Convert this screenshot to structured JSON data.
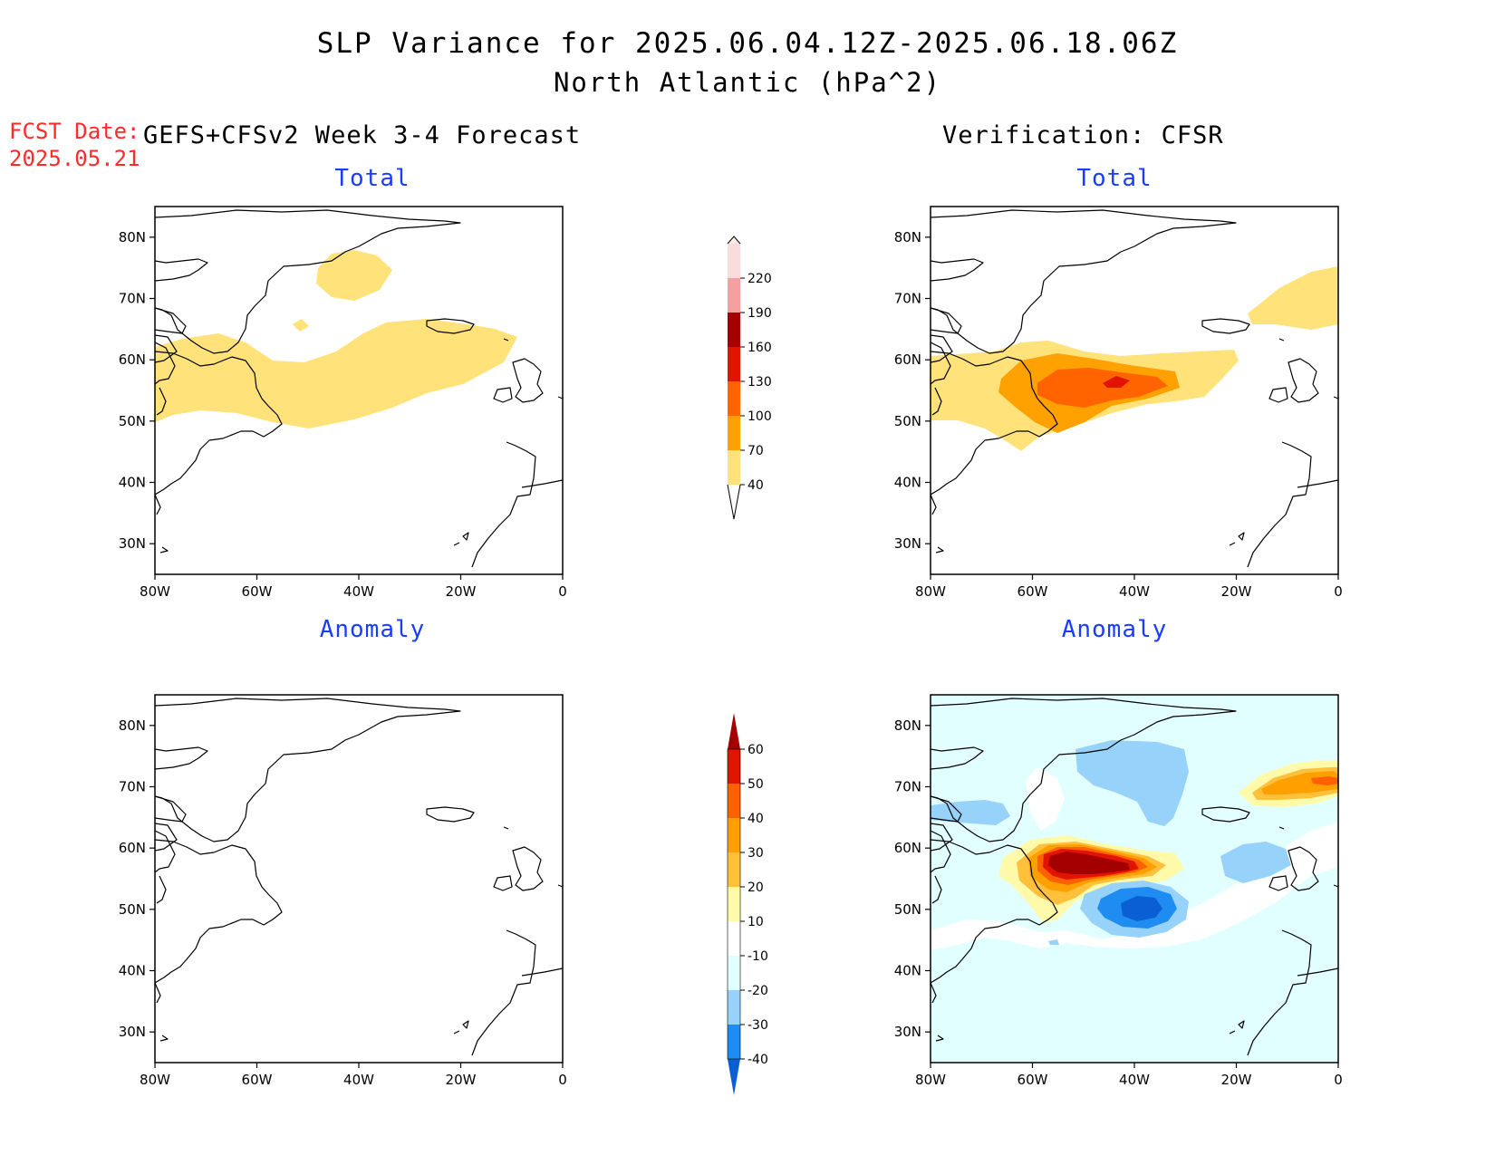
{
  "title": {
    "line1": "SLP Variance for 2025.06.04.12Z-2025.06.18.06Z",
    "line2": "North Atlantic (hPa^2)"
  },
  "forecast_date": {
    "label": "FCST Date:",
    "value": "2025.05.21"
  },
  "left_header": "GEFS+CFSv2 Week 3-4 Forecast",
  "right_header": "Verification: CFSR",
  "panel_titles": {
    "total": "Total",
    "anomaly": "Anomaly"
  },
  "axes": {
    "lon_ticks": [
      "80W",
      "60W",
      "40W",
      "20W",
      "0"
    ],
    "lat_ticks": [
      "80N",
      "70N",
      "60N",
      "50N",
      "40N",
      "30N"
    ],
    "lon_range": [
      -80,
      0
    ],
    "lat_range": [
      25,
      85
    ]
  },
  "chart_data": {
    "type": "heatmap",
    "colorbars": [
      {
        "name": "total",
        "levels": [
          40,
          70,
          100,
          130,
          160,
          190,
          220
        ],
        "labels": [
          "40",
          "70",
          "100",
          "130",
          "160",
          "190",
          "220"
        ],
        "colors": [
          "#ffe27a",
          "#ffa100",
          "#ff6400",
          "#e11400",
          "#a50000",
          "#f4a0a0",
          "#fbdcdc"
        ]
      },
      {
        "name": "anomaly",
        "levels": [
          -40,
          -30,
          -20,
          -10,
          10,
          20,
          30,
          40,
          50,
          60
        ],
        "labels": [
          "-40",
          "-30",
          "-20",
          "-10",
          "10",
          "20",
          "30",
          "40",
          "50",
          "60"
        ],
        "colors": [
          "#0a5fd2",
          "#1e8cf0",
          "#96d2fa",
          "#e1ffff",
          "#ffffff",
          "#fffaaa",
          "#ffc03c",
          "#ffa000",
          "#ff6000",
          "#e11400",
          "#a50000"
        ]
      }
    ],
    "panels": [
      {
        "name": "forecast-total",
        "features": "band of 40-70 across 50-60N from 80W to 10W; small 40-70 area over central Greenland"
      },
      {
        "name": "forecast-anomaly",
        "features": "no shading (all between -10 and 10)"
      },
      {
        "name": "verification-total",
        "features": "40-70 band 45-62N; 70-130 core near 55N 45-55W; 130-160 near 55N 45W; 40-70 near 68N 5W"
      },
      {
        "name": "verification-anomaly",
        "features": "positive maximum >60 near 57N 50W; negative minimum <-40 near 48N 35W; positive 30-50 near 72N 5W; negative -20 to -30 over Greenland and 58N 15W"
      }
    ]
  }
}
